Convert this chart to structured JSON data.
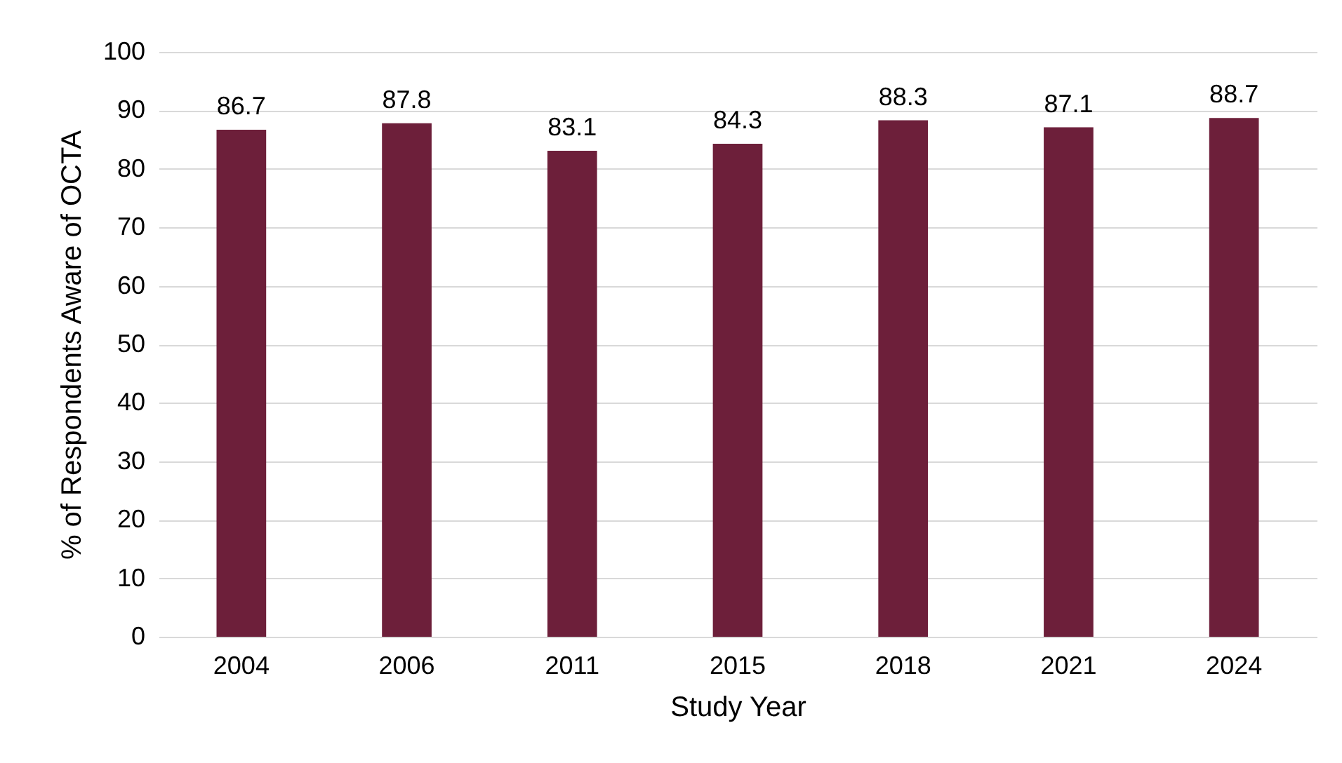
{
  "chart_data": {
    "type": "bar",
    "xlabel": "Study Year",
    "ylabel": "% of Respondents Aware of OCTA",
    "categories": [
      "2004",
      "2006",
      "2011",
      "2015",
      "2018",
      "2021",
      "2024"
    ],
    "values": [
      86.7,
      87.8,
      83.1,
      84.3,
      88.3,
      87.1,
      88.7
    ],
    "color": "#6d1f3a",
    "ylim": [
      0,
      100
    ],
    "yticks": [
      0,
      10,
      20,
      30,
      40,
      50,
      60,
      70,
      80,
      90,
      100
    ],
    "grid": "y",
    "data_labels": true
  }
}
